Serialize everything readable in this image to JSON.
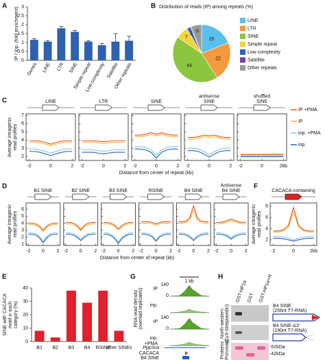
{
  "chart_data": [
    {
      "panel": "A",
      "type": "bar",
      "ylabel": "IP / Inp. (fold enrichment)",
      "categories": [
        "Genes",
        "LINE",
        "LTR",
        "SINE",
        "Simple repeat",
        "Low complexity",
        "Satellite",
        "Other repeats"
      ],
      "values": [
        1.15,
        1.05,
        1.8,
        1.6,
        1.05,
        0.85,
        1.05,
        1.1
      ],
      "errors": [
        0.07,
        0.06,
        0.1,
        0.08,
        0.05,
        0.1,
        0.45,
        0.25
      ],
      "color": "#2e62b0",
      "ylim": [
        0,
        3
      ],
      "yticks": [
        0,
        0.5,
        1,
        1.5,
        2,
        2.5,
        3
      ]
    },
    {
      "panel": "B",
      "type": "pie",
      "title": "Distribution of reads (IP) among repeats (%)",
      "categories": [
        "LINE",
        "LTR",
        "SINE",
        "Simple repeat",
        "Low complexity",
        "Satellite",
        "Other repeats"
      ],
      "values": [
        19,
        22,
        44,
        7,
        2,
        0.5,
        6
      ],
      "colors": [
        "#5bc0eb",
        "#f59a3c",
        "#8cc63f",
        "#f5d33c",
        "#2b65c0",
        "#7b3fa0",
        "#9a9a9a"
      ]
    },
    {
      "panel": "C",
      "type": "line",
      "ylabel": [
        "Average intragenic",
        "read profiles"
      ],
      "xlabel": "Distance from center of repeat (kb)",
      "x": [
        -2,
        -1.5,
        -1,
        -0.5,
        0,
        0.5,
        1,
        1.5,
        2
      ],
      "xlim": [
        -2.3,
        2.3
      ],
      "xticks": [
        -2,
        0,
        2
      ],
      "ylim": [
        1.5,
        7.2
      ],
      "yticks": [
        2,
        3,
        4,
        5,
        6,
        7
      ],
      "series": [
        {
          "name": "IP +PMA",
          "color": "#e8501c"
        },
        {
          "name": "IP",
          "color": "#f2b62e"
        },
        {
          "name": "inp. +PMA",
          "color": "#7fc6e8"
        },
        {
          "name": "inp.",
          "color": "#2b5fb3"
        }
      ],
      "subplots": [
        {
          "title": [
            "LINE"
          ],
          "values": [
            [
              3.9,
              3.9,
              3.85,
              3.7,
              3.5,
              3.7,
              3.85,
              3.9,
              3.9
            ],
            [
              3.7,
              3.7,
              3.65,
              3.5,
              3.3,
              3.5,
              3.65,
              3.7,
              3.7
            ],
            [
              2.9,
              2.9,
              2.8,
              2.6,
              2.4,
              2.6,
              2.8,
              2.9,
              2.9
            ],
            [
              2.6,
              2.6,
              2.5,
              2.3,
              2.1,
              2.3,
              2.5,
              2.6,
              2.6
            ]
          ]
        },
        {
          "title": [
            "LTR"
          ],
          "values": [
            [
              3.9,
              3.9,
              3.9,
              3.85,
              3.8,
              3.85,
              3.9,
              3.9,
              3.9
            ],
            [
              3.7,
              3.7,
              3.7,
              3.65,
              3.6,
              3.65,
              3.7,
              3.7,
              3.7
            ],
            [
              2.8,
              2.8,
              2.8,
              2.7,
              2.6,
              2.7,
              2.8,
              2.8,
              2.8
            ],
            [
              2.5,
              2.5,
              2.5,
              2.4,
              2.3,
              2.4,
              2.5,
              2.5,
              2.5
            ]
          ]
        },
        {
          "title": [
            "SINE"
          ],
          "values": [
            [
              4.6,
              4.6,
              4.7,
              4.9,
              4.7,
              4.9,
              4.7,
              4.6,
              4.6
            ],
            [
              4.4,
              4.4,
              4.5,
              4.7,
              4.5,
              4.7,
              4.5,
              4.4,
              4.4
            ],
            [
              3.2,
              3.2,
              3.1,
              2.8,
              2.1,
              2.8,
              3.1,
              3.2,
              3.2
            ],
            [
              2.9,
              2.9,
              2.8,
              2.5,
              1.8,
              2.5,
              2.8,
              2.9,
              2.9
            ]
          ]
        },
        {
          "title": [
            "antisense",
            "SINE"
          ],
          "values": [
            [
              4.3,
              4.3,
              4.4,
              4.6,
              4.5,
              4.6,
              4.4,
              4.3,
              4.3
            ],
            [
              4.1,
              4.1,
              4.2,
              4.4,
              4.3,
              4.4,
              4.2,
              4.1,
              4.1
            ],
            [
              3.0,
              3.0,
              2.9,
              2.6,
              2.2,
              2.6,
              2.9,
              3.0,
              3.0
            ],
            [
              2.7,
              2.7,
              2.6,
              2.3,
              1.9,
              2.3,
              2.6,
              2.7,
              2.7
            ]
          ]
        },
        {
          "title": [
            "shuffled",
            "SINE"
          ],
          "xticks": [
            -2,
            0,
            {
              "value": 2,
              "label": "2kb"
            }
          ],
          "values": [
            [
              2.25,
              2.25,
              2.25,
              2.25,
              2.25,
              2.25,
              2.25,
              2.25,
              2.25
            ],
            [
              2.15,
              2.15,
              2.15,
              2.15,
              2.15,
              2.15,
              2.15,
              2.15,
              2.15
            ],
            [
              2.05,
              2.05,
              2.05,
              2.05,
              2.05,
              2.05,
              2.05,
              2.05,
              2.05
            ],
            [
              1.95,
              1.95,
              1.95,
              1.95,
              1.95,
              1.95,
              1.95,
              1.95,
              1.95
            ]
          ]
        }
      ]
    },
    {
      "panel": "D",
      "type": "line",
      "ylabel": [
        "Average intragenic",
        "read profiles"
      ],
      "xlabel": "Distance from center of repeat (kb)",
      "x": [
        -2,
        -1.5,
        -1,
        -0.5,
        0,
        0.5,
        1,
        1.5,
        2
      ],
      "xlim": [
        -2.3,
        2.3
      ],
      "xticks": [
        -2,
        0,
        2
      ],
      "ylim": [
        0.8,
        6.9
      ],
      "yticks": [
        1,
        2,
        3,
        4,
        5,
        6
      ],
      "colors": [
        "#e8501c",
        "#f2b62e",
        "#7fc6e8",
        "#2b5fb3"
      ],
      "subplots": [
        {
          "title": [
            "B1 SINE"
          ],
          "values": [
            [
              4.0,
              4.0,
              3.9,
              3.6,
              3.0,
              3.6,
              3.9,
              4.0,
              4.0
            ],
            [
              3.8,
              3.8,
              3.7,
              3.4,
              2.8,
              3.4,
              3.7,
              3.8,
              3.8
            ],
            [
              2.6,
              2.6,
              2.5,
              2.1,
              1.4,
              2.1,
              2.5,
              2.6,
              2.6
            ],
            [
              2.4,
              2.4,
              2.3,
              1.9,
              1.2,
              1.9,
              2.3,
              2.4,
              2.4
            ]
          ]
        },
        {
          "title": [
            "B2 SINE"
          ],
          "values": [
            [
              4.1,
              4.1,
              4.0,
              3.7,
              3.1,
              3.7,
              4.0,
              4.1,
              4.1
            ],
            [
              3.9,
              3.9,
              3.8,
              3.5,
              2.9,
              3.5,
              3.8,
              3.9,
              3.9
            ],
            [
              2.6,
              2.6,
              2.5,
              2.2,
              1.7,
              2.2,
              2.5,
              2.6,
              2.6
            ],
            [
              2.4,
              2.4,
              2.3,
              2.0,
              1.5,
              2.0,
              2.3,
              2.4,
              2.4
            ]
          ]
        },
        {
          "title": [
            "B3 SINE"
          ],
          "values": [
            [
              4.1,
              4.1,
              4.0,
              3.7,
              3.2,
              3.7,
              4.0,
              4.1,
              4.1
            ],
            [
              3.9,
              3.9,
              3.8,
              3.5,
              3.0,
              3.5,
              3.8,
              3.9,
              3.9
            ],
            [
              2.6,
              2.6,
              2.4,
              2.0,
              1.3,
              2.0,
              2.4,
              2.6,
              2.6
            ],
            [
              2.4,
              2.4,
              2.2,
              1.8,
              1.1,
              1.8,
              2.2,
              2.4,
              2.4
            ]
          ]
        },
        {
          "title": [
            "RSINE"
          ],
          "values": [
            [
              4.2,
              4.2,
              4.2,
              4.1,
              3.9,
              4.1,
              4.2,
              4.2,
              4.2
            ],
            [
              4.0,
              4.0,
              4.0,
              3.9,
              3.7,
              3.9,
              4.0,
              4.0,
              4.0
            ],
            [
              2.6,
              2.6,
              2.5,
              2.2,
              1.6,
              2.2,
              2.5,
              2.6,
              2.6
            ],
            [
              2.4,
              2.4,
              2.3,
              2.0,
              1.4,
              2.0,
              2.3,
              2.4,
              2.4
            ]
          ]
        },
        {
          "title": [
            "B4 SINE"
          ],
          "values": [
            [
              4.2,
              4.2,
              4.3,
              4.8,
              6.5,
              4.8,
              4.3,
              4.2,
              4.2
            ],
            [
              4.0,
              4.0,
              4.1,
              4.5,
              5.8,
              4.5,
              4.1,
              4.0,
              4.0
            ],
            [
              2.6,
              2.6,
              2.5,
              2.2,
              1.7,
              2.2,
              2.5,
              2.6,
              2.6
            ],
            [
              2.4,
              2.4,
              2.3,
              2.0,
              1.5,
              2.0,
              2.3,
              2.4,
              2.4
            ]
          ]
        },
        {
          "title": [
            "Antisense",
            "B4 SINE"
          ],
          "values": [
            [
              4.1,
              4.1,
              4.2,
              4.4,
              4.6,
              4.4,
              4.2,
              4.1,
              4.1
            ],
            [
              3.9,
              3.9,
              4.0,
              4.2,
              4.4,
              4.2,
              4.0,
              3.9,
              3.9
            ],
            [
              2.6,
              2.6,
              2.5,
              2.3,
              1.9,
              2.3,
              2.5,
              2.6,
              2.6
            ],
            [
              2.4,
              2.4,
              2.3,
              2.1,
              1.7,
              2.1,
              2.3,
              2.4,
              2.4
            ]
          ]
        }
      ]
    },
    {
      "panel": "F",
      "type": "line",
      "ylabel": [
        "Average intragenic",
        "read profiles"
      ],
      "x": [
        -2,
        -1.5,
        -1,
        -0.5,
        0,
        0.5,
        1,
        1.5,
        2
      ],
      "xlim": [
        -2.3,
        2.3
      ],
      "xticks": [
        -2,
        0,
        {
          "value": 2,
          "label": "2kb"
        }
      ],
      "ylim": [
        1,
        8.6
      ],
      "yticks": [
        2,
        4,
        6,
        8
      ],
      "icon_color": "#e02020",
      "colors": [
        "#e8501c",
        "#f2b62e",
        "#7fc6e8",
        "#2b5fb3"
      ],
      "subplots": [
        {
          "title": [
            "CACACA-containing"
          ],
          "values": [
            [
              3.6,
              3.6,
              3.8,
              4.6,
              7.8,
              4.6,
              3.8,
              3.6,
              3.6
            ],
            [
              3.4,
              3.4,
              3.6,
              4.3,
              7.0,
              4.3,
              3.6,
              3.4,
              3.4
            ],
            [
              2.6,
              2.6,
              2.5,
              2.3,
              2.0,
              2.3,
              2.5,
              2.6,
              2.6
            ],
            [
              2.3,
              2.3,
              2.2,
              2.0,
              1.8,
              2.0,
              2.2,
              2.3,
              2.3
            ]
          ]
        }
      ]
    },
    {
      "panel": "E",
      "type": "bar",
      "ylabel": [
        "SINE with CACACA",
        "motif in each",
        "category (%)"
      ],
      "categories": [
        "B1",
        "B2",
        "B3",
        "B4",
        "RSINE",
        "other SINEs"
      ],
      "values": [
        8,
        3,
        38,
        29,
        38,
        8
      ],
      "color": "#e0202a",
      "ylim": [
        0,
        40
      ],
      "yticks": [
        0,
        10,
        20,
        30,
        40
      ]
    }
  ],
  "panels": {
    "G": {
      "letter": "G",
      "ylabel": [
        "RNA read density",
        "(overlaid replicates)"
      ],
      "scale": "1 kb",
      "tracks": [
        {
          "label": "IP",
          "ymax": 140,
          "ymin": 0
        },
        {
          "label": "inp."
        },
        {
          "label": "IP",
          "ymax": 140,
          "ymin": 0
        },
        {
          "label": "inp.",
          "sub": "+PMA"
        }
      ],
      "gene": "Ppp3ca",
      "motif": "CACACA",
      "element": "B4 SINE"
    },
    "H": {
      "letter": "H",
      "lanes": [
        "GST-HP1α",
        "GST",
        "GST-HP1α+H"
      ],
      "blot_label": [
        "North-western",
        "(Cy3-Streptavidin)"
      ],
      "probes": [
        [
          "B4 SINE",
          "(256nt T7-RNA)"
        ],
        [
          "B4 SINE-Δ3'",
          "(190nt T7-RNA)"
        ]
      ],
      "stain_label": [
        "Proteins",
        "(Ponceau)"
      ],
      "markers": [
        "-52kDa",
        "-42kDa"
      ]
    }
  }
}
